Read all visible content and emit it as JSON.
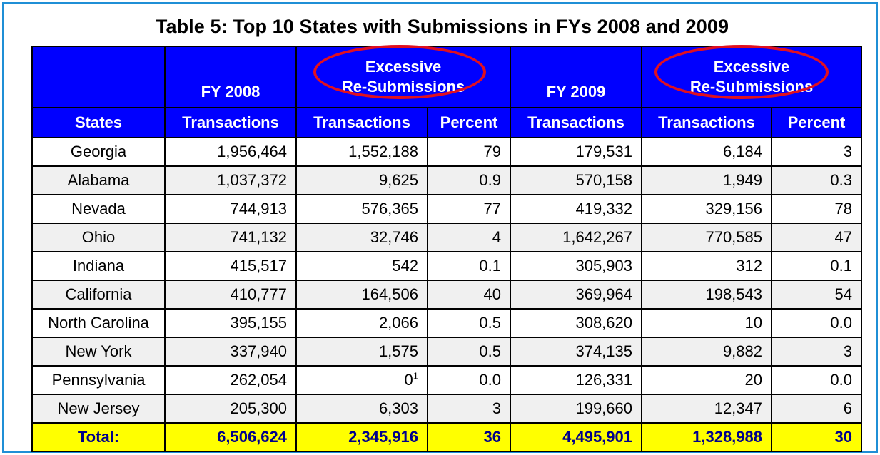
{
  "title": "Table 5: Top 10 States with Submissions in FYs 2008 and 2009",
  "header_top": {
    "fy2008": "FY 2008",
    "excess1_line1": "Excessive",
    "excess1_line2": "Re-Submissions",
    "fy2009": "FY 2009",
    "excess2_line1": "Excessive",
    "excess2_line2": "Re-Submissions"
  },
  "header_cols": [
    "States",
    "Transactions",
    "Transactions",
    "Percent",
    "Transactions",
    "Transactions",
    "Percent"
  ],
  "rows": [
    {
      "state": "Georgia",
      "fy08": "1,956,464",
      "ex08": "1,552,188",
      "pct08": "79",
      "fy09": "179,531",
      "ex09": "6,184",
      "pct09": "3"
    },
    {
      "state": "Alabama",
      "fy08": "1,037,372",
      "ex08": "9,625",
      "pct08": "0.9",
      "fy09": "570,158",
      "ex09": "1,949",
      "pct09": "0.3"
    },
    {
      "state": "Nevada",
      "fy08": "744,913",
      "ex08": "576,365",
      "pct08": "77",
      "fy09": "419,332",
      "ex09": "329,156",
      "pct09": "78"
    },
    {
      "state": "Ohio",
      "fy08": "741,132",
      "ex08": "32,746",
      "pct08": "4",
      "fy09": "1,642,267",
      "ex09": "770,585",
      "pct09": "47"
    },
    {
      "state": "Indiana",
      "fy08": "415,517",
      "ex08": "542",
      "pct08": "0.1",
      "fy09": "305,903",
      "ex09": "312",
      "pct09": "0.1"
    },
    {
      "state": "California",
      "fy08": "410,777",
      "ex08": "164,506",
      "pct08": "40",
      "fy09": "369,964",
      "ex09": "198,543",
      "pct09": "54"
    },
    {
      "state": "North Carolina",
      "fy08": "395,155",
      "ex08": "2,066",
      "pct08": "0.5",
      "fy09": "308,620",
      "ex09": "10",
      "pct09": "0.0"
    },
    {
      "state": "New York",
      "fy08": "337,940",
      "ex08": "1,575",
      "pct08": "0.5",
      "fy09": "374,135",
      "ex09": "9,882",
      "pct09": "3"
    },
    {
      "state": "Pennsylvania",
      "fy08": "262,054",
      "ex08": "0",
      "ex08_sup": "1",
      "pct08": "0.0",
      "fy09": "126,331",
      "ex09": "20",
      "pct09": "0.0"
    },
    {
      "state": "New Jersey",
      "fy08": "205,300",
      "ex08": "6,303",
      "pct08": "3",
      "fy09": "199,660",
      "ex09": "12,347",
      "pct09": "6"
    }
  ],
  "total": {
    "state": "Total:",
    "fy08": "6,506,624",
    "ex08": "2,345,916",
    "pct08": "36",
    "fy09": "4,495,901",
    "ex09": "1,328,988",
    "pct09": "30"
  },
  "colors": {
    "header_bg": "#0000ff",
    "total_bg": "#ffff00",
    "total_text": "#00008b",
    "highlight_ellipse": "#e01020",
    "frame": "#1f8fd6"
  }
}
